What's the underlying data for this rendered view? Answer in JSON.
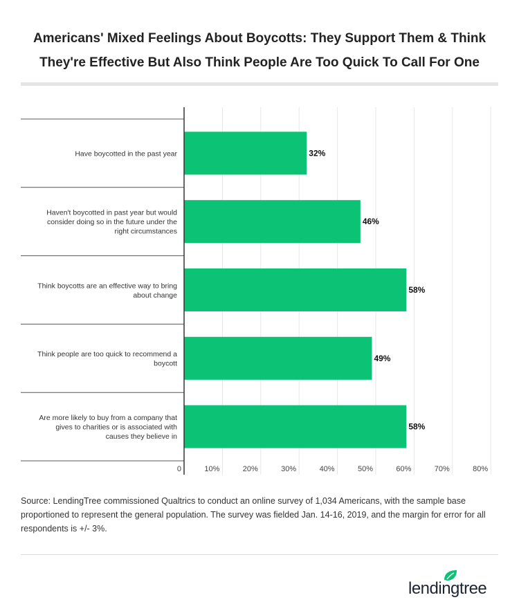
{
  "chart_data": {
    "type": "bar",
    "orientation": "horizontal",
    "title": "Americans' Mixed Feelings About Boycotts: They Support Them & Think They're Effective But Also Think People Are Too Quick To Call For One",
    "categories": [
      "Have boycotted in the past year",
      "Haven't boycotted in past year but would consider doing so in the future under the right circumstances",
      "Think boycotts are an effective way to bring about change",
      "Think people are too quick to recommend a boycott",
      "Are more likely to buy from a company that gives to charities or is associated with causes they believe in"
    ],
    "values": [
      32,
      46,
      58,
      49,
      58
    ],
    "data_labels": [
      "32%",
      "46%",
      "58%",
      "49%",
      "58%"
    ],
    "xlim": [
      0,
      80
    ],
    "x_ticks": [
      0,
      10,
      20,
      30,
      40,
      50,
      60,
      70,
      80
    ],
    "x_tick_labels": [
      "0",
      "10%",
      "20%",
      "30%",
      "40%",
      "50%",
      "60%",
      "70%",
      "80%"
    ],
    "grid": true,
    "bar_color": "#0bc275"
  },
  "source": "Source: LendingTree commissioned Qualtrics to conduct an online survey of 1,034 Americans, with the sample base proportioned to represent the general population. The survey was fielded Jan. 14-16, 2019, and the margin for error for all respondents is +/- 3%.",
  "logo": {
    "text": "lendingtree",
    "color": "#0bc275"
  }
}
